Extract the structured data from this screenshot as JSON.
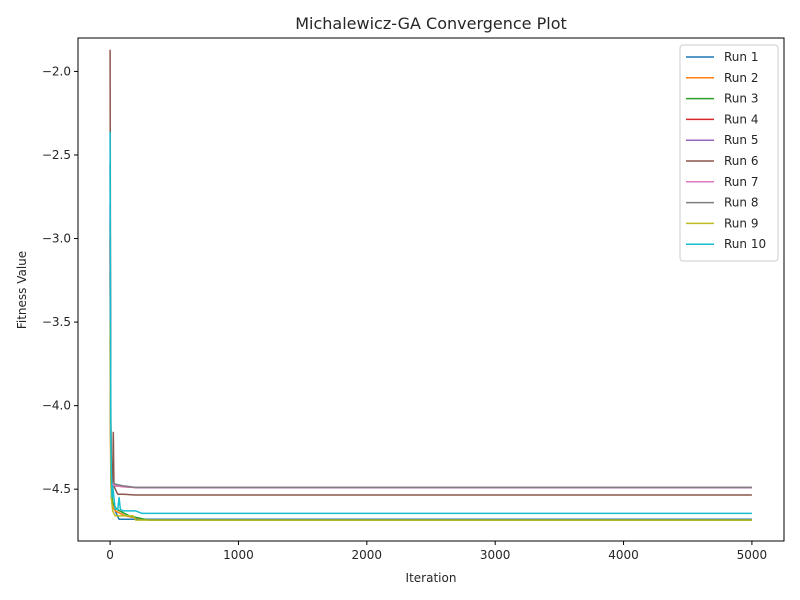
{
  "chart_data": {
    "type": "line",
    "title": "Michalewicz-GA Convergence Plot",
    "xlabel": "Iteration",
    "ylabel": "Fitness Value",
    "xlim": [
      -250,
      5250
    ],
    "ylim": [
      -4.81,
      -1.8
    ],
    "xticks": [
      0,
      1000,
      2000,
      3000,
      4000,
      5000
    ],
    "xtick_labels": [
      "0",
      "1000",
      "2000",
      "3000",
      "4000",
      "5000"
    ],
    "yticks": [
      -4.5,
      -4.0,
      -3.5,
      -3.0,
      -2.5,
      -2.0
    ],
    "ytick_labels": [
      "−4.5",
      "−4.0",
      "−3.5",
      "−3.0",
      "−2.5",
      "−2.0"
    ],
    "grid": false,
    "legend_position": "top-right",
    "series": [
      {
        "name": "Run 1",
        "color": "#1f77b4",
        "x": [
          0,
          3,
          6,
          10,
          20,
          40,
          70,
          250,
          5000
        ],
        "y": [
          -2.55,
          -3.8,
          -4.3,
          -4.5,
          -4.6,
          -4.63,
          -4.68,
          -4.68,
          -4.68
        ]
      },
      {
        "name": "Run 2",
        "color": "#ff7f0e",
        "x": [
          0,
          3,
          6,
          10,
          20,
          40,
          120,
          300,
          5000
        ],
        "y": [
          -3.6,
          -4.2,
          -4.45,
          -4.55,
          -4.6,
          -4.63,
          -4.66,
          -4.685,
          -4.685
        ]
      },
      {
        "name": "Run 3",
        "color": "#2ca02c",
        "x": [
          0,
          3,
          6,
          10,
          20,
          50,
          150,
          300,
          5000
        ],
        "y": [
          -3.2,
          -4.0,
          -4.35,
          -4.5,
          -4.58,
          -4.62,
          -4.66,
          -4.685,
          -4.685
        ]
      },
      {
        "name": "Run 4",
        "color": "#d62728",
        "x": [
          0,
          3,
          6,
          10,
          20,
          40,
          100,
          200,
          5000
        ],
        "y": [
          -3.0,
          -3.9,
          -4.3,
          -4.45,
          -4.47,
          -4.48,
          -4.485,
          -4.49,
          -4.49
        ]
      },
      {
        "name": "Run 5",
        "color": "#9467bd",
        "x": [
          0,
          3,
          6,
          10,
          20,
          40,
          100,
          200,
          5000
        ],
        "y": [
          -2.8,
          -3.7,
          -4.2,
          -4.4,
          -4.46,
          -4.47,
          -4.48,
          -4.49,
          -4.49
        ]
      },
      {
        "name": "Run 6",
        "color": "#8c564b",
        "x": [
          0,
          3,
          6,
          10,
          15,
          20,
          25,
          30,
          40,
          60,
          100,
          200,
          5000
        ],
        "y": [
          -1.87,
          -3.2,
          -4.1,
          -4.35,
          -4.42,
          -4.45,
          -4.16,
          -4.48,
          -4.5,
          -4.53,
          -4.53,
          -4.535,
          -4.535
        ]
      },
      {
        "name": "Run 7",
        "color": "#e377c2",
        "x": [
          0,
          3,
          6,
          10,
          20,
          40,
          100,
          200,
          5000
        ],
        "y": [
          -3.1,
          -3.9,
          -4.3,
          -4.45,
          -4.47,
          -4.48,
          -4.485,
          -4.49,
          -4.49
        ]
      },
      {
        "name": "Run 8",
        "color": "#7f7f7f",
        "x": [
          0,
          3,
          6,
          10,
          20,
          40,
          100,
          200,
          5000
        ],
        "y": [
          -2.9,
          -3.8,
          -4.25,
          -4.42,
          -4.46,
          -4.47,
          -4.48,
          -4.49,
          -4.49
        ]
      },
      {
        "name": "Run 9",
        "color": "#bcbd22",
        "x": [
          0,
          3,
          6,
          10,
          20,
          40,
          100,
          180,
          200,
          5000
        ],
        "y": [
          -3.5,
          -4.1,
          -4.4,
          -4.55,
          -4.63,
          -4.66,
          -4.66,
          -4.66,
          -4.685,
          -4.685
        ]
      },
      {
        "name": "Run 10",
        "color": "#17becf",
        "x": [
          0,
          3,
          6,
          10,
          15,
          20,
          40,
          60,
          70,
          80,
          100,
          200,
          250,
          5000
        ],
        "y": [
          -2.36,
          -3.5,
          -4.2,
          -4.4,
          -4.55,
          -4.48,
          -4.62,
          -4.62,
          -4.55,
          -4.62,
          -4.63,
          -4.63,
          -4.645,
          -4.645
        ]
      }
    ]
  }
}
